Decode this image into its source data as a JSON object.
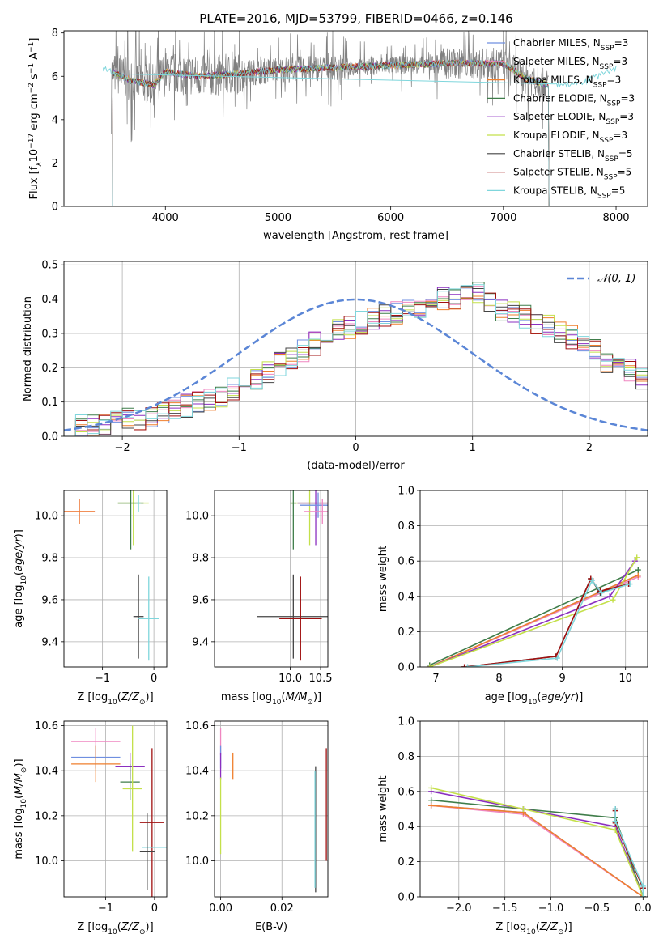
{
  "figure": {
    "title": "PLATE=2016, MJD=53799, FIBERID=0466, z=0.146"
  },
  "colors": {
    "chabrier_miles": "#6f8fe0",
    "salpeter_miles": "#ef86c0",
    "kroupa_miles": "#ef7f2d",
    "chabrier_elodie": "#3f7d4a",
    "salpeter_elodie": "#8b2fc0",
    "kroupa_elodie": "#c4e04a",
    "chabrier_stelib": "#444444",
    "salpeter_stelib": "#a01010",
    "kroupa_stelib": "#7fd6dc",
    "data": "#808080",
    "normal": "#5b86d6"
  },
  "legend_labels": [
    {
      "pre": "Chabrier MILES, N",
      "sub": "SSP",
      "post": "=3"
    },
    {
      "pre": "Salpeter MILES, N",
      "sub": "SSP",
      "post": "=3"
    },
    {
      "pre": "Kroupa MILES, N",
      "sub": "SSP",
      "post": "=3"
    },
    {
      "pre": "Chabrier ELODIE, N",
      "sub": "SSP",
      "post": "=3"
    },
    {
      "pre": "Salpeter ELODIE, N",
      "sub": "SSP",
      "post": "=3"
    },
    {
      "pre": "Kroupa ELODIE, N",
      "sub": "SSP",
      "post": "=3"
    },
    {
      "pre": "Chabrier STELIB, N",
      "sub": "SSP",
      "post": "=5"
    },
    {
      "pre": "Salpeter STELIB, N",
      "sub": "SSP",
      "post": "=5"
    },
    {
      "pre": "Kroupa STELIB, N",
      "sub": "SSP",
      "post": "=5"
    }
  ],
  "chart_data": [
    {
      "id": "spectrum",
      "type": "line",
      "xlabel": "wavelength [Angstrom, rest frame]",
      "ylabel": "Flux [f_λ 10^-17 erg cm^-2 s^-1 A^-1]",
      "xlim": [
        3100,
        8280
      ],
      "ylim": [
        0,
        8.1
      ],
      "xticks": [
        4000,
        5000,
        6000,
        7000,
        8000
      ],
      "yticks": [
        0,
        2,
        4,
        6,
        8
      ],
      "grid": false,
      "legend": "upper right",
      "continuum": {
        "x": [
          3450,
          3520,
          3700,
          3900,
          4000,
          4300,
          4600,
          5000,
          5500,
          6000,
          6500,
          7000,
          7200,
          7400,
          7700,
          8000
        ],
        "y": [
          6.4,
          6.2,
          5.8,
          5.6,
          6.2,
          6.0,
          6.1,
          6.3,
          6.4,
          6.5,
          6.6,
          6.6,
          5.9,
          5.6,
          5.7,
          6.4
        ]
      },
      "data_range": [
        3520,
        7400
      ],
      "model_x_range": [
        3450,
        8000
      ],
      "model_start_drop": 3530,
      "model_end_drop": 7400
    },
    {
      "id": "residuals",
      "type": "step",
      "xlabel": "(data-model)/error",
      "ylabel": "Normed distribution",
      "xlim": [
        -2.5,
        2.5
      ],
      "ylim": [
        0,
        0.51
      ],
      "xticks": [
        -2,
        -1,
        0,
        1,
        2
      ],
      "yticks": [
        0.0,
        0.1,
        0.2,
        0.3,
        0.4,
        0.5
      ],
      "grid": true,
      "legend": "upper right",
      "legend_label": "N(0,1)",
      "bin_width": 0.1,
      "bin_start": -2.5,
      "base_values": [
        0.02,
        0.03,
        0.03,
        0.04,
        0.04,
        0.05,
        0.05,
        0.06,
        0.07,
        0.08,
        0.09,
        0.1,
        0.11,
        0.12,
        0.14,
        0.15,
        0.17,
        0.19,
        0.21,
        0.23,
        0.25,
        0.27,
        0.29,
        0.31,
        0.32,
        0.33,
        0.34,
        0.35,
        0.36,
        0.38,
        0.38,
        0.39,
        0.4,
        0.4,
        0.41,
        0.42,
        0.39,
        0.37,
        0.36,
        0.35,
        0.33,
        0.32,
        0.3,
        0.29,
        0.27,
        0.25,
        0.22,
        0.21,
        0.19,
        0.17
      ]
    },
    {
      "id": "age_vs_Z",
      "type": "errorbar",
      "xlabel": "Z [log10(Z/Z_sun)]",
      "ylabel": "age [log10(age/yr)]",
      "xlim": [
        -1.75,
        0.25
      ],
      "ylim": [
        9.28,
        10.12
      ],
      "xticks": [
        -1,
        0
      ],
      "yticks": [
        9.4,
        9.6,
        9.8,
        10.0
      ],
      "grid": true,
      "points": [
        {
          "series": "salpeter_miles",
          "x": -1.45,
          "xerr": 0.3,
          "y": 10.02,
          "yerr": 0.06
        },
        {
          "series": "kroupa_miles",
          "x": -1.45,
          "xerr": 0.3,
          "y": 10.02,
          "yerr": 0.06
        },
        {
          "series": "kroupa_elodie",
          "x": -0.4,
          "xerr": 0.3,
          "y": 10.06,
          "yerr": 0.2
        },
        {
          "series": "chabrier_elodie",
          "x": -0.45,
          "xerr": 0.25,
          "y": 10.06,
          "yerr": 0.22
        },
        {
          "series": "chabrier_stelib",
          "x": -0.3,
          "xerr": 0.1,
          "y": 9.52,
          "yerr": 0.2
        },
        {
          "series": "kroupa_stelib",
          "x": -0.1,
          "xerr": 0.2,
          "y": 9.51,
          "yerr": 0.2
        },
        {
          "series": "kroupa_stelib",
          "x": -0.3,
          "xerr": 0.05,
          "y": 10.06,
          "yerr": 0.04
        }
      ]
    },
    {
      "id": "age_vs_mass",
      "type": "errorbar",
      "xlabel": "mass [log10(M/M_sun)]",
      "ylabel": "",
      "xlim": [
        8.75,
        10.62
      ],
      "ylim": [
        9.28,
        10.12
      ],
      "xticks": [
        10.0,
        10.5
      ],
      "yticks": [
        9.4,
        9.6,
        9.8,
        10.0
      ],
      "grid": true,
      "points": [
        {
          "series": "chabrier_stelib",
          "x": 10.05,
          "xerr": 0.6,
          "y": 9.52,
          "yerr": 0.2
        },
        {
          "series": "salpeter_stelib",
          "x": 10.17,
          "xerr": 0.35,
          "y": 9.51,
          "yerr": 0.2
        },
        {
          "series": "kroupa_elodie",
          "x": 10.32,
          "xerr": 0.3,
          "y": 10.06,
          "yerr": 0.2
        },
        {
          "series": "salpeter_elodie",
          "x": 10.42,
          "xerr": 0.3,
          "y": 10.06,
          "yerr": 0.2
        },
        {
          "series": "chabrier_miles",
          "x": 10.46,
          "xerr": 0.3,
          "y": 10.05,
          "yerr": 0.06
        },
        {
          "series": "salpeter_miles",
          "x": 10.53,
          "xerr": 0.3,
          "y": 10.02,
          "yerr": 0.06
        },
        {
          "series": "chabrier_elodie",
          "x": 10.05,
          "xerr": 0.05,
          "y": 10.06,
          "yerr": 0.22
        }
      ]
    },
    {
      "id": "mass_weight_vs_age",
      "type": "line",
      "xlabel": "age [log10(age/yr)]",
      "ylabel": "mass weight",
      "xlim": [
        6.75,
        10.35
      ],
      "ylim": [
        0,
        1.0
      ],
      "xticks": [
        7,
        8,
        9,
        10
      ],
      "yticks": [
        0.0,
        0.2,
        0.4,
        0.6,
        0.8,
        1.0
      ],
      "grid": true,
      "series": [
        {
          "key": "chabrier_miles",
          "x": [
            6.9,
            10.2
          ],
          "y": [
            0.0,
            0.52
          ]
        },
        {
          "key": "salpeter_miles",
          "x": [
            6.9,
            10.2
          ],
          "y": [
            0.0,
            0.51
          ]
        },
        {
          "key": "kroupa_miles",
          "x": [
            6.9,
            10.2
          ],
          "y": [
            0.0,
            0.52
          ]
        },
        {
          "key": "chabrier_elodie",
          "x": [
            6.9,
            10.2
          ],
          "y": [
            0.01,
            0.55
          ]
        },
        {
          "key": "salpeter_elodie",
          "x": [
            6.9,
            9.75,
            10.15
          ],
          "y": [
            0.0,
            0.4,
            0.6
          ]
        },
        {
          "key": "kroupa_elodie",
          "x": [
            6.9,
            9.8,
            10.18
          ],
          "y": [
            0.0,
            0.38,
            0.62
          ]
        },
        {
          "key": "chabrier_stelib",
          "x": [
            7.45,
            8.9,
            9.45,
            9.6,
            10.05
          ],
          "y": [
            0.0,
            0.06,
            0.5,
            0.42,
            0.47
          ]
        },
        {
          "key": "salpeter_stelib",
          "x": [
            7.45,
            8.9,
            9.45,
            9.6,
            10.05
          ],
          "y": [
            0.0,
            0.06,
            0.5,
            0.43,
            0.47
          ]
        },
        {
          "key": "kroupa_stelib",
          "x": [
            7.5,
            8.92,
            9.47,
            9.62,
            10.07
          ],
          "y": [
            0.0,
            0.05,
            0.49,
            0.42,
            0.47
          ]
        }
      ]
    },
    {
      "id": "mass_vs_Z",
      "type": "errorbar",
      "xlabel": "Z [log10(Z/Z_sun)]",
      "ylabel": "mass [log10(M/M_sun)]",
      "xlim": [
        -1.85,
        0.25
      ],
      "ylim": [
        9.84,
        10.62
      ],
      "xticks": [
        -1,
        0
      ],
      "yticks": [
        10.0,
        10.2,
        10.4,
        10.6
      ],
      "grid": true,
      "points": [
        {
          "series": "salpeter_miles",
          "x": -1.2,
          "xerr": 0.5,
          "y": 10.53,
          "yerr": 0.06
        },
        {
          "series": "chabrier_miles",
          "x": -1.2,
          "xerr": 0.5,
          "y": 10.46,
          "yerr": 0.05
        },
        {
          "series": "kroupa_miles",
          "x": -1.2,
          "xerr": 0.5,
          "y": 10.43,
          "yerr": 0.08
        },
        {
          "series": "salpeter_elodie",
          "x": -0.5,
          "xerr": 0.3,
          "y": 10.42,
          "yerr": 0.06
        },
        {
          "series": "chabrier_elodie",
          "x": -0.5,
          "xerr": 0.2,
          "y": 10.35,
          "yerr": 0.08
        },
        {
          "series": "kroupa_elodie",
          "x": -0.45,
          "xerr": 0.2,
          "y": 10.32,
          "yerr": 0.28
        },
        {
          "series": "salpeter_stelib",
          "x": -0.05,
          "xerr": 0.25,
          "y": 10.17,
          "yerr": 0.33
        },
        {
          "series": "kroupa_stelib",
          "x": 0.0,
          "xerr": 0.25,
          "y": 10.06,
          "yerr": 0.0
        },
        {
          "series": "chabrier_stelib",
          "x": -0.15,
          "xerr": 0.15,
          "y": 10.04,
          "yerr": 0.17
        }
      ]
    },
    {
      "id": "mass_vs_ebv",
      "type": "errorbar",
      "xlabel": "E(B-V)",
      "ylabel": "",
      "xlim": [
        -0.002,
        0.035
      ],
      "ylim": [
        9.84,
        10.62
      ],
      "xticks": [
        0.0,
        0.02
      ],
      "yticks": [
        10.0,
        10.2,
        10.4,
        10.6
      ],
      "grid": true,
      "points": [
        {
          "series": "salpeter_miles",
          "x": 0.0,
          "xerr": 0,
          "y": 10.53,
          "yerr": 0.06
        },
        {
          "series": "chabrier_miles",
          "x": 0.0,
          "xerr": 0,
          "y": 10.46,
          "yerr": 0.05
        },
        {
          "series": "salpeter_elodie",
          "x": 0.0,
          "xerr": 0,
          "y": 10.42,
          "yerr": 0.06
        },
        {
          "series": "kroupa_elodie",
          "x": 0.0,
          "xerr": 0,
          "y": 10.2,
          "yerr": 0.17
        },
        {
          "series": "kroupa_miles",
          "x": 0.004,
          "xerr": 0,
          "y": 10.42,
          "yerr": 0.06
        },
        {
          "series": "chabrier_stelib",
          "x": 0.031,
          "xerr": 0,
          "y": 10.14,
          "yerr": 0.28
        },
        {
          "series": "kroupa_stelib",
          "x": 0.0308,
          "xerr": 0,
          "y": 10.14,
          "yerr": 0.26
        },
        {
          "series": "salpeter_stelib",
          "x": 0.0345,
          "xerr": 0,
          "y": 10.25,
          "yerr": 0.25
        }
      ]
    },
    {
      "id": "mass_weight_vs_Z",
      "type": "line",
      "xlabel": "Z [log10(Z/Z_sun)]",
      "ylabel": "mass weight",
      "xlim": [
        -2.42,
        0.05
      ],
      "ylim": [
        0,
        1.0
      ],
      "xticks": [
        -2.0,
        -1.5,
        -1.0,
        -0.5,
        0.0
      ],
      "yticks": [
        0.0,
        0.2,
        0.4,
        0.6,
        0.8,
        1.0
      ],
      "grid": true,
      "series": [
        {
          "key": "chabrier_miles",
          "x": [
            -2.3,
            -1.3,
            0.0
          ],
          "y": [
            0.52,
            0.48,
            0.0
          ]
        },
        {
          "key": "salpeter_miles",
          "x": [
            -2.3,
            -1.3,
            0.0
          ],
          "y": [
            0.52,
            0.47,
            0.0
          ]
        },
        {
          "key": "kroupa_miles",
          "x": [
            -2.3,
            -1.3,
            0.0
          ],
          "y": [
            0.52,
            0.48,
            0.0
          ]
        },
        {
          "key": "chabrier_elodie",
          "x": [
            -2.3,
            -1.3,
            -0.3,
            0.0
          ],
          "y": [
            0.55,
            0.5,
            0.45,
            0.0
          ]
        },
        {
          "key": "salpeter_elodie",
          "x": [
            -2.3,
            -1.3,
            -0.3,
            0.0
          ],
          "y": [
            0.6,
            0.5,
            0.4,
            0.0
          ]
        },
        {
          "key": "kroupa_elodie",
          "x": [
            -2.3,
            -1.3,
            -0.3,
            0.0
          ],
          "y": [
            0.62,
            0.5,
            0.38,
            0.0
          ]
        },
        {
          "key": "chabrier_stelib",
          "x": [
            -0.3,
            -0.3,
            0.0,
            0.0
          ],
          "y": [
            0.5,
            0.43,
            0.05,
            0.0
          ]
        },
        {
          "key": "salpeter_stelib",
          "x": [
            -0.3,
            -0.3,
            0.0,
            0.0
          ],
          "y": [
            0.49,
            0.42,
            0.05,
            0.0
          ]
        },
        {
          "key": "kroupa_stelib",
          "x": [
            -0.3,
            -0.3,
            0.0,
            0.0
          ],
          "y": [
            0.5,
            0.43,
            0.06,
            0.0
          ]
        }
      ]
    }
  ]
}
